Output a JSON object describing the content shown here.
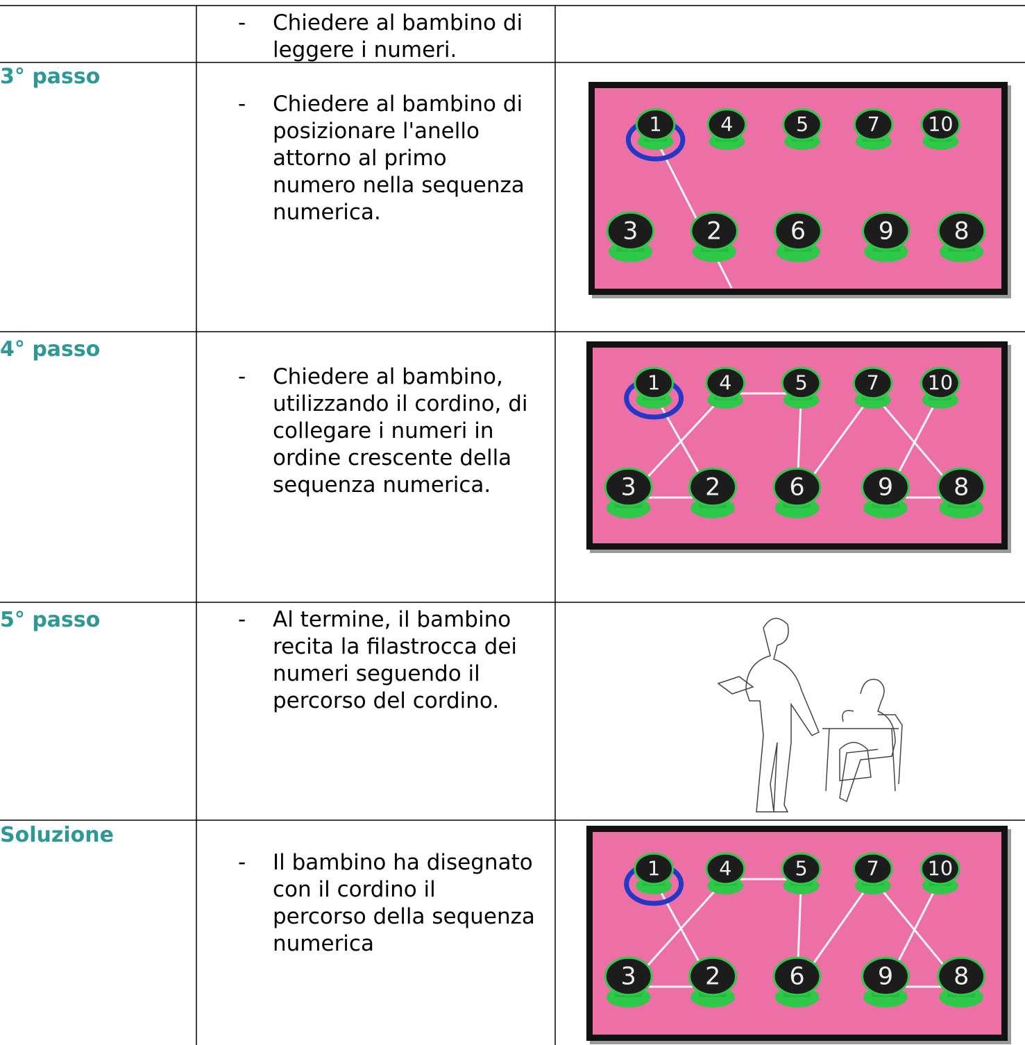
{
  "bullet": "-",
  "board": {
    "top": [
      "1",
      "4",
      "5",
      "7",
      "10"
    ],
    "bottom": [
      "3",
      "2",
      "6",
      "9",
      "8"
    ]
  },
  "rows": [
    {
      "lines": [
        "Chiedere al bambino di",
        "leggere i numeri."
      ]
    },
    {
      "label": "3° passo",
      "lines": [
        "Chiedere al bambino di",
        "posizionare l'anello",
        "attorno al primo",
        "numero nella sequenza",
        "numerica."
      ]
    },
    {
      "label": "4° passo",
      "lines": [
        "Chiedere al bambino,",
        "utilizzando il cordino, di",
        "collegare i numeri in",
        "ordine crescente della",
        "sequenza numerica."
      ]
    },
    {
      "label": "5° passo",
      "lines": [
        "Al termine, il bambino",
        "recita la filastrocca dei",
        "numeri seguendo il",
        "percorso del cordino."
      ]
    },
    {
      "label": "Soluzione",
      "lines": [
        "Il bambino ha disegnato",
        "con il cordino il",
        "percorso della sequenza",
        "numerica"
      ]
    }
  ]
}
